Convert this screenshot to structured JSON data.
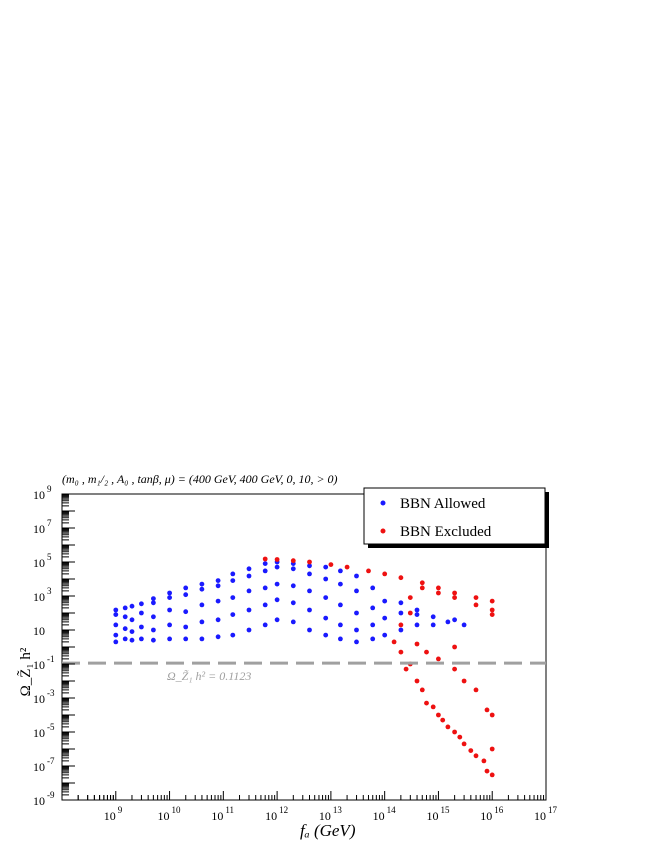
{
  "chart_data": {
    "type": "scatter",
    "title": "(m₀ , m₁/₂ , A₀ , tanβ, μ) = (400 GeV, 400 GeV, 0, 10, > 0)",
    "xlabel": "fₐ (GeV)",
    "ylabel": "Ω_Z̃₁ h²",
    "x_scale": "log",
    "y_scale": "log",
    "xlim": [
      100000000.0,
      1e+17
    ],
    "ylim": [
      1e-09,
      1000000000.0
    ],
    "x_ticks": [
      {
        "value": 1000000000.0,
        "base": "10",
        "exp": "9"
      },
      {
        "value": 10000000000.0,
        "base": "10",
        "exp": "10"
      },
      {
        "value": 100000000000.0,
        "base": "10",
        "exp": "11"
      },
      {
        "value": 1000000000000.0,
        "base": "10",
        "exp": "12"
      },
      {
        "value": 10000000000000.0,
        "base": "10",
        "exp": "13"
      },
      {
        "value": 100000000000000.0,
        "base": "10",
        "exp": "14"
      },
      {
        "value": 1000000000000000.0,
        "base": "10",
        "exp": "15"
      },
      {
        "value": 1e+16,
        "base": "10",
        "exp": "16"
      },
      {
        "value": 1e+17,
        "base": "10",
        "exp": "17"
      }
    ],
    "y_ticks": [
      {
        "value": 1000000000.0,
        "base": "10",
        "exp": "9"
      },
      {
        "value": 10000000.0,
        "base": "10",
        "exp": "7"
      },
      {
        "value": 100000.0,
        "base": "10",
        "exp": "5"
      },
      {
        "value": 1000.0,
        "base": "10",
        "exp": "3"
      },
      {
        "value": 10,
        "base": "10",
        "exp": ""
      },
      {
        "value": 0.1,
        "base": "10",
        "exp": "-1"
      },
      {
        "value": 0.001,
        "base": "10",
        "exp": "-3"
      },
      {
        "value": 1e-05,
        "base": "10",
        "exp": "-5"
      },
      {
        "value": 1e-07,
        "base": "10",
        "exp": "-7"
      },
      {
        "value": 1e-09,
        "base": "10",
        "exp": "-9"
      }
    ],
    "legend": {
      "placement": "top-right",
      "entries": [
        {
          "name": "BBN Allowed",
          "color": "#1a1aff"
        },
        {
          "name": "BBN Excluded",
          "color": "#ee1111"
        }
      ]
    },
    "reference_line": {
      "y": 0.1123,
      "style": "dashed",
      "color": "#a0a0a0",
      "label": "Ω_Z̃₁ h² = 0.1123"
    },
    "grid": false,
    "series": [
      {
        "name": "BBN Allowed",
        "color": "#1a1aff",
        "points": [
          [
            1000000000.0,
            2.0
          ],
          [
            1000000000.0,
            5.0
          ],
          [
            1000000000.0,
            20
          ],
          [
            1000000000.0,
            80
          ],
          [
            1000000000.0,
            150
          ],
          [
            1500000000.0,
            3.0
          ],
          [
            1500000000.0,
            12
          ],
          [
            1500000000.0,
            60
          ],
          [
            1500000000.0,
            200
          ],
          [
            2000000000.0,
            2.5
          ],
          [
            2000000000.0,
            8.0
          ],
          [
            2000000000.0,
            40
          ],
          [
            2000000000.0,
            250
          ],
          [
            3000000000.0,
            3.0
          ],
          [
            3000000000.0,
            15
          ],
          [
            3000000000.0,
            100
          ],
          [
            3000000000.0,
            350
          ],
          [
            5000000000.0,
            2.5
          ],
          [
            5000000000.0,
            10
          ],
          [
            5000000000.0,
            60
          ],
          [
            5000000000.0,
            400
          ],
          [
            5000000000.0,
            700
          ],
          [
            10000000000.0,
            3.0
          ],
          [
            10000000000.0,
            20
          ],
          [
            10000000000.0,
            150
          ],
          [
            10000000000.0,
            800
          ],
          [
            10000000000.0,
            1500
          ],
          [
            20000000000.0,
            3.0
          ],
          [
            20000000000.0,
            15
          ],
          [
            20000000000.0,
            120
          ],
          [
            20000000000.0,
            1200
          ],
          [
            20000000000.0,
            3000
          ],
          [
            40000000000.0,
            3.0
          ],
          [
            40000000000.0,
            30
          ],
          [
            40000000000.0,
            300
          ],
          [
            40000000000.0,
            2500
          ],
          [
            40000000000.0,
            5000
          ],
          [
            80000000000.0,
            4.0
          ],
          [
            80000000000.0,
            40
          ],
          [
            80000000000.0,
            500
          ],
          [
            80000000000.0,
            4000
          ],
          [
            80000000000.0,
            8000
          ],
          [
            150000000000.0,
            5.0
          ],
          [
            150000000000.0,
            80
          ],
          [
            150000000000.0,
            800
          ],
          [
            150000000000.0,
            8000
          ],
          [
            150000000000.0,
            20000
          ],
          [
            300000000000.0,
            10
          ],
          [
            300000000000.0,
            150
          ],
          [
            300000000000.0,
            2000
          ],
          [
            300000000000.0,
            15000
          ],
          [
            300000000000.0,
            40000
          ],
          [
            600000000000.0,
            20
          ],
          [
            600000000000.0,
            300
          ],
          [
            600000000000.0,
            3000
          ],
          [
            600000000000.0,
            30000
          ],
          [
            600000000000.0,
            80000
          ],
          [
            1000000000000.0,
            40
          ],
          [
            1000000000000.0,
            600
          ],
          [
            1000000000000.0,
            5000
          ],
          [
            1000000000000.0,
            50000
          ],
          [
            1000000000000.0,
            100000
          ],
          [
            2000000000000.0,
            30
          ],
          [
            2000000000000.0,
            400
          ],
          [
            2000000000000.0,
            4000
          ],
          [
            2000000000000.0,
            40000
          ],
          [
            2000000000000.0,
            80000
          ],
          [
            4000000000000.0,
            10
          ],
          [
            4000000000000.0,
            150
          ],
          [
            4000000000000.0,
            2000
          ],
          [
            4000000000000.0,
            20000
          ],
          [
            4000000000000.0,
            60000
          ],
          [
            8000000000000.0,
            5.0
          ],
          [
            8000000000000.0,
            50
          ],
          [
            8000000000000.0,
            800
          ],
          [
            8000000000000.0,
            10000
          ],
          [
            8000000000000.0,
            50000
          ],
          [
            15000000000000.0,
            3.0
          ],
          [
            15000000000000.0,
            20
          ],
          [
            15000000000000.0,
            300
          ],
          [
            15000000000000.0,
            5000
          ],
          [
            15000000000000.0,
            30000
          ],
          [
            30000000000000.0,
            2.0
          ],
          [
            30000000000000.0,
            10
          ],
          [
            30000000000000.0,
            100
          ],
          [
            30000000000000.0,
            2000
          ],
          [
            30000000000000.0,
            15000
          ],
          [
            60000000000000.0,
            3.0
          ],
          [
            60000000000000.0,
            20
          ],
          [
            60000000000000.0,
            200
          ],
          [
            60000000000000.0,
            3000
          ],
          [
            100000000000000.0,
            5.0
          ],
          [
            100000000000000.0,
            50
          ],
          [
            100000000000000.0,
            500
          ],
          [
            200000000000000.0,
            10
          ],
          [
            200000000000000.0,
            100
          ],
          [
            200000000000000.0,
            400
          ],
          [
            400000000000000.0,
            20
          ],
          [
            400000000000000.0,
            80
          ],
          [
            400000000000000.0,
            150
          ],
          [
            800000000000000.0,
            20
          ],
          [
            800000000000000.0,
            60
          ],
          [
            1500000000000000.0,
            30
          ],
          [
            2000000000000000.0,
            40
          ],
          [
            3000000000000000.0,
            20
          ]
        ]
      },
      {
        "name": "BBN Excluded",
        "color": "#ee1111",
        "points": [
          [
            600000000000.0,
            150000
          ],
          [
            1000000000000.0,
            140000
          ],
          [
            2000000000000.0,
            120000
          ],
          [
            4000000000000.0,
            100000
          ],
          [
            10000000000000.0,
            70000
          ],
          [
            20000000000000.0,
            50000
          ],
          [
            50000000000000.0,
            30000
          ],
          [
            100000000000000.0,
            20000
          ],
          [
            200000000000000.0,
            12000
          ],
          [
            500000000000000.0,
            6000
          ],
          [
            1000000000000000.0,
            3000
          ],
          [
            2000000000000000.0,
            1500
          ],
          [
            5000000000000000.0,
            800
          ],
          [
            1e+16,
            500
          ],
          [
            1e+16,
            150
          ],
          [
            1e+16,
            80
          ],
          [
            5000000000000000.0,
            300
          ],
          [
            2000000000000000.0,
            800
          ],
          [
            1000000000000000.0,
            1500
          ],
          [
            500000000000000.0,
            3000
          ],
          [
            300000000000000.0,
            800
          ],
          [
            300000000000000.0,
            100
          ],
          [
            200000000000000.0,
            20
          ],
          [
            150000000000000.0,
            2.0
          ],
          [
            200000000000000.0,
            0.5
          ],
          [
            250000000000000.0,
            0.05
          ],
          [
            300000000000000.0,
            0.1
          ],
          [
            400000000000000.0,
            0.01
          ],
          [
            500000000000000.0,
            0.003
          ],
          [
            600000000000000.0,
            0.0005
          ],
          [
            800000000000000.0,
            0.0003
          ],
          [
            1000000000000000.0,
            0.0001
          ],
          [
            1200000000000000.0,
            5e-05
          ],
          [
            1500000000000000.0,
            2e-05
          ],
          [
            2000000000000000.0,
            1e-05
          ],
          [
            2500000000000000.0,
            5e-06
          ],
          [
            3000000000000000.0,
            2e-06
          ],
          [
            4000000000000000.0,
            8e-07
          ],
          [
            5000000000000000.0,
            4e-07
          ],
          [
            7000000000000000.0,
            2e-07
          ],
          [
            8000000000000000.0,
            5e-08
          ],
          [
            1e+16,
            3e-08
          ],
          [
            1e+16,
            1e-06
          ],
          [
            1e+16,
            0.0001
          ],
          [
            8000000000000000.0,
            0.0002
          ],
          [
            5000000000000000.0,
            0.003
          ],
          [
            3000000000000000.0,
            0.01
          ],
          [
            2000000000000000.0,
            0.05
          ],
          [
            1000000000000000.0,
            0.2
          ],
          [
            600000000000000.0,
            0.5
          ],
          [
            400000000000000.0,
            1.5
          ],
          [
            2000000000000000.0,
            1.0
          ]
        ]
      }
    ]
  }
}
